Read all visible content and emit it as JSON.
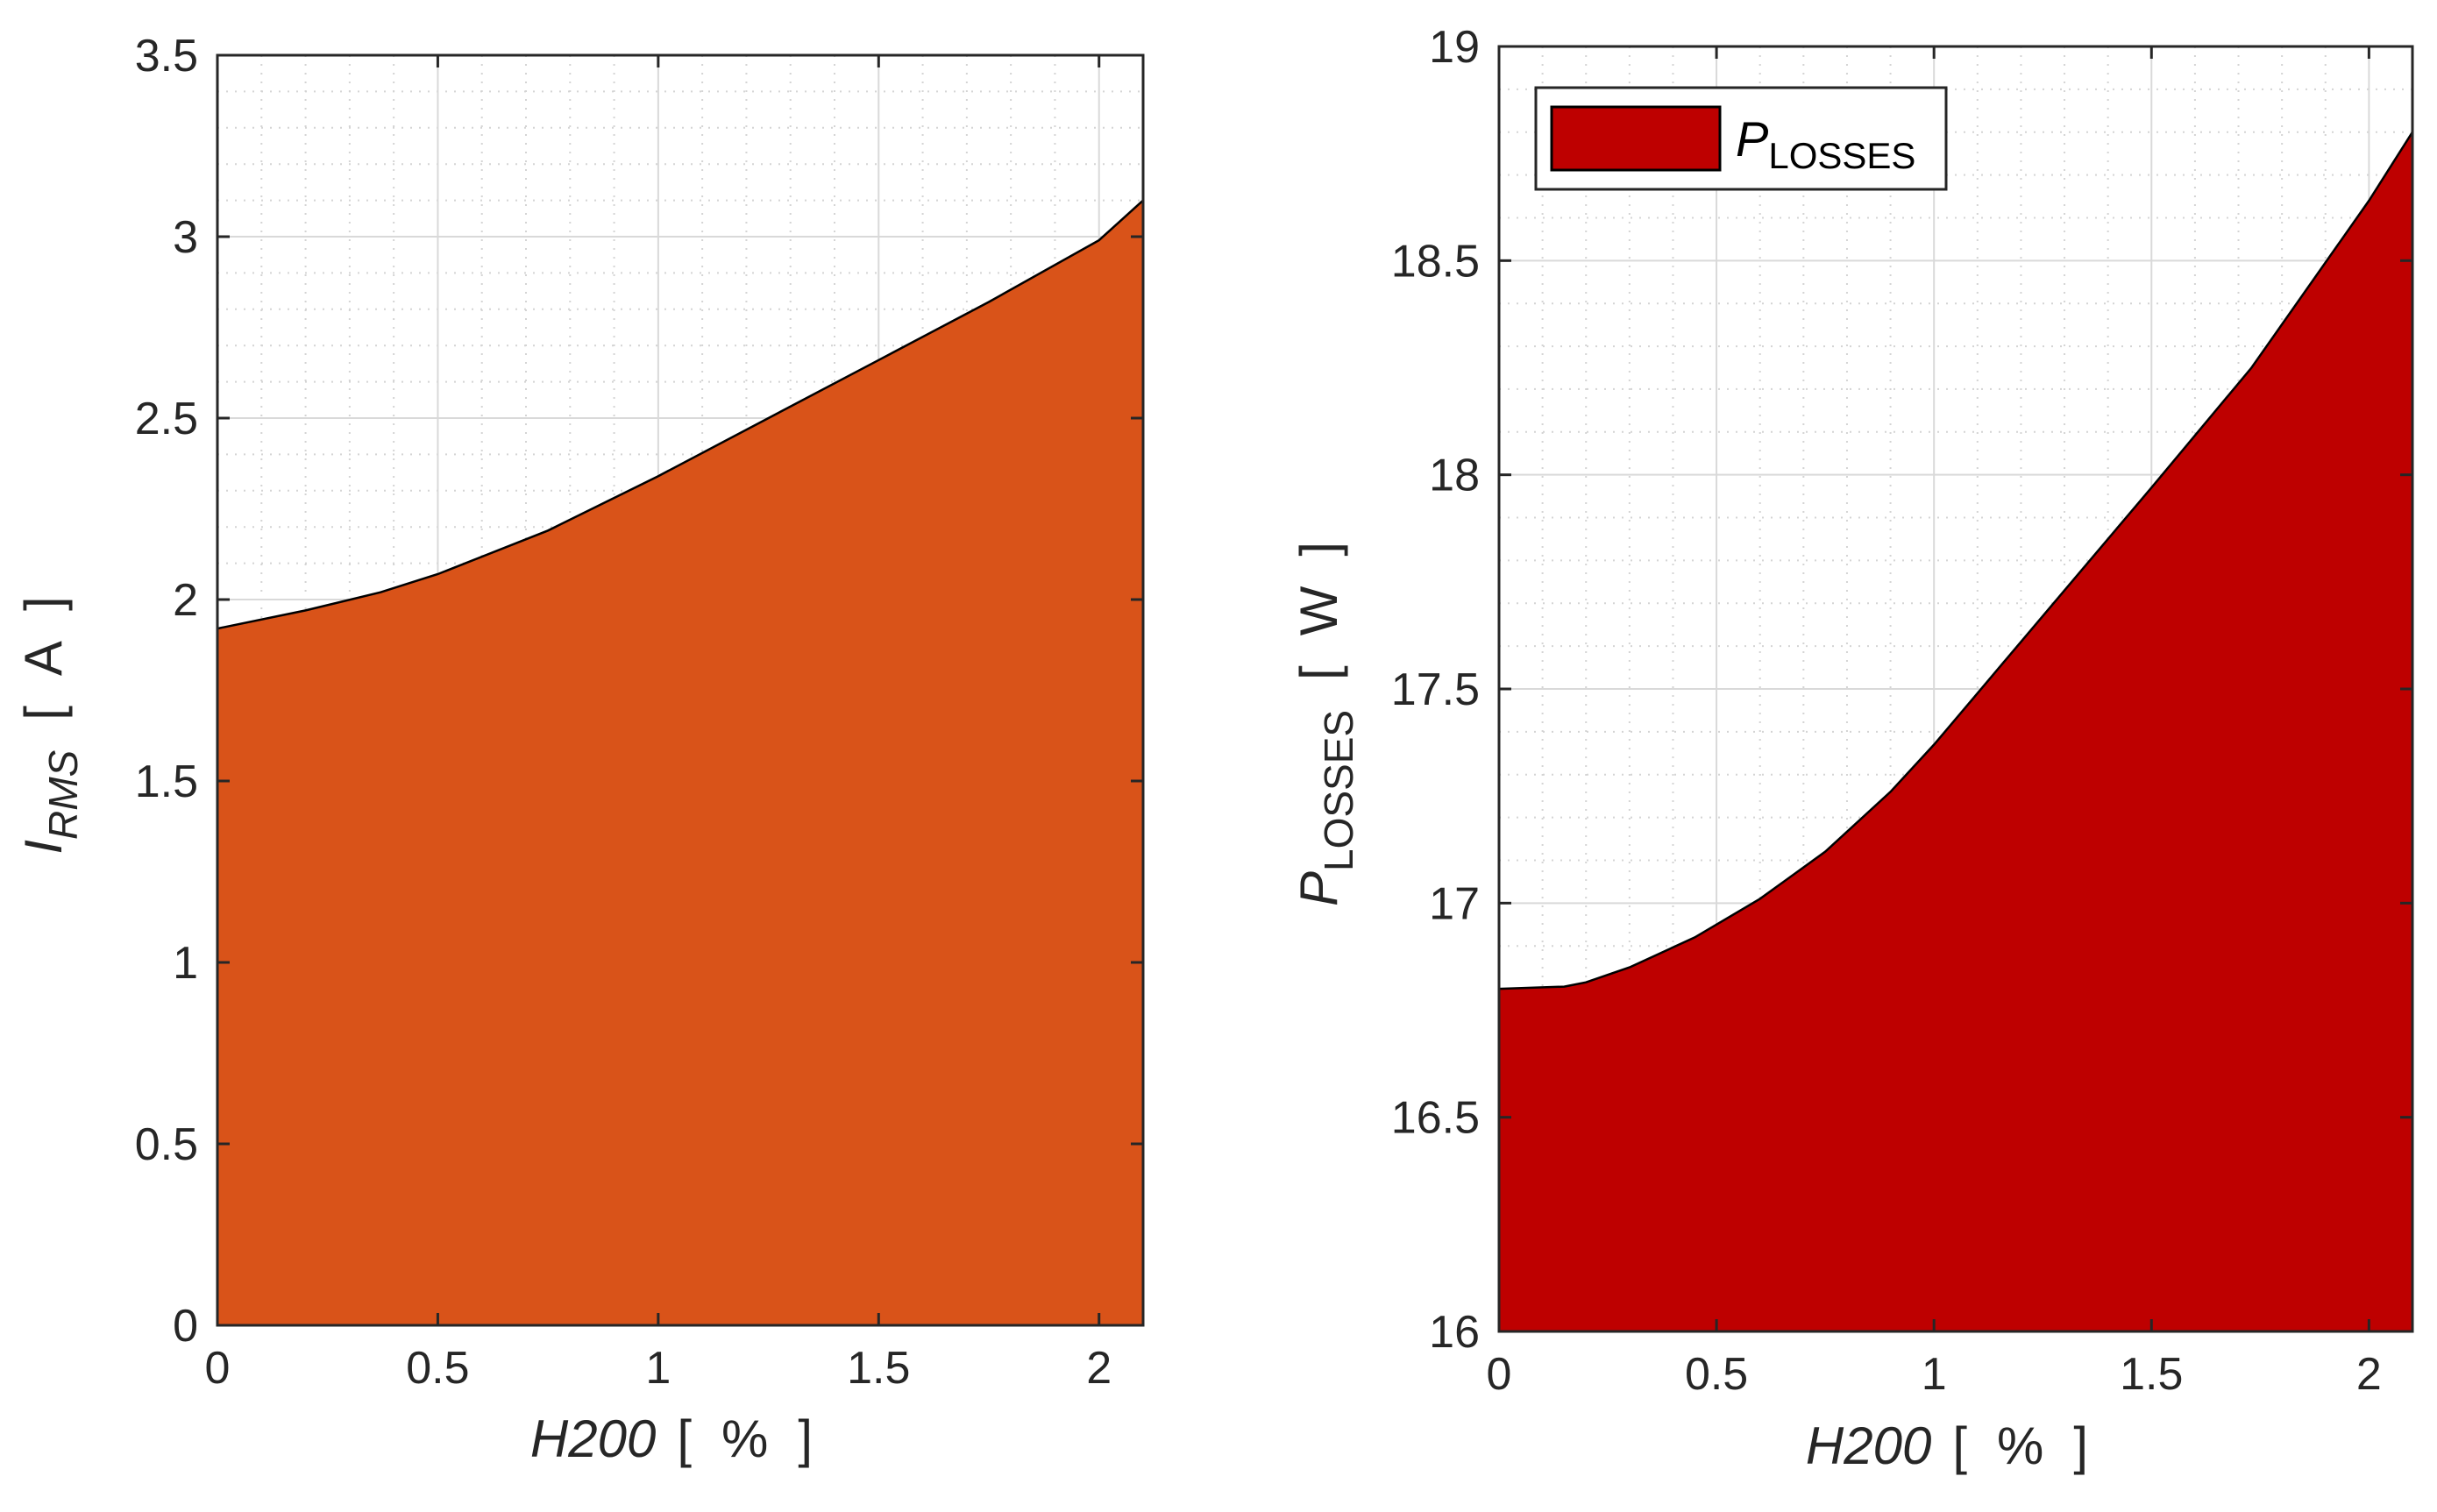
{
  "chart_data": [
    {
      "type": "area",
      "id": "left",
      "title": "",
      "xlabel": "H200",
      "xunit": "%",
      "ylabel_main": "I",
      "ylabel_sub": "RMS",
      "yunit": "A",
      "xlim": [
        0,
        2.1
      ],
      "ylim": [
        0,
        3.5
      ],
      "xticks": [
        0,
        0.5,
        1,
        1.5,
        2
      ],
      "xtick_labels": [
        "0",
        "0.5",
        "1",
        "1.5",
        "2"
      ],
      "yticks": [
        0,
        0.5,
        1,
        1.5,
        2,
        2.5,
        3,
        3.5
      ],
      "ytick_labels": [
        "0",
        "0.5",
        "1",
        "1.5",
        "2",
        "2.5",
        "3",
        "3.5"
      ],
      "fill_color": "#d95319",
      "grid": true,
      "minor_grid": true,
      "series": [
        {
          "name": "I_RMS",
          "x": [
            0,
            0.2,
            0.37,
            0.5,
            0.75,
            1.0,
            1.25,
            1.5,
            1.75,
            2.0,
            2.1
          ],
          "y": [
            1.92,
            1.97,
            2.02,
            2.07,
            2.19,
            2.34,
            2.5,
            2.66,
            2.82,
            2.99,
            3.1
          ]
        }
      ]
    },
    {
      "type": "area",
      "id": "right",
      "title": "",
      "xlabel": "H200",
      "xunit": "%",
      "ylabel_main": "P",
      "ylabel_sub": "LOSSES",
      "yunit": "W",
      "xlim": [
        0,
        2.1
      ],
      "ylim": [
        16,
        19
      ],
      "xticks": [
        0,
        0.5,
        1,
        1.5,
        2
      ],
      "xtick_labels": [
        "0",
        "0.5",
        "1",
        "1.5",
        "2"
      ],
      "yticks": [
        16,
        16.5,
        17,
        17.5,
        18,
        18.5,
        19
      ],
      "ytick_labels": [
        "16",
        "16.5",
        "17",
        "17.5",
        "18",
        "18.5",
        "19"
      ],
      "fill_color": "#be0000",
      "grid": true,
      "minor_grid": true,
      "legend": {
        "main": "P",
        "sub": "LOSSES",
        "placement": "top-left"
      },
      "series": [
        {
          "name": "P_LOSSES",
          "x": [
            0,
            0.15,
            0.2,
            0.3,
            0.45,
            0.6,
            0.75,
            0.9,
            1.0,
            1.1,
            1.25,
            1.5,
            1.73,
            2.0,
            2.1
          ],
          "y": [
            16.8,
            16.805,
            16.815,
            16.85,
            16.92,
            17.01,
            17.12,
            17.26,
            17.37,
            17.49,
            17.67,
            17.97,
            18.25,
            18.64,
            18.8
          ]
        }
      ]
    }
  ]
}
